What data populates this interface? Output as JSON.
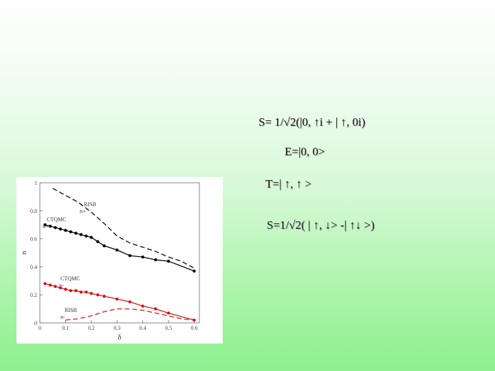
{
  "equations": {
    "s1": "S= 1/√2(|0, ↑i + | ↑, 0i)",
    "e": "E=|0, 0>",
    "t": "T=| ↑, ↑ >",
    "s2": "S=1/√2( | ↑, ↓> -| ↑↓ >)"
  },
  "chart_data": {
    "type": "line",
    "title": "",
    "xlabel": "δ",
    "ylabel": "n",
    "xlim": [
      0,
      0.62
    ],
    "ylim": [
      0,
      1.0
    ],
    "x_ticks": [
      "0",
      "0.1",
      "0.2",
      "0.3",
      "0.4",
      "0.5",
      "0.6"
    ],
    "y_ticks": [
      "0",
      "0.2",
      "0.4",
      "0.6",
      "0.8",
      "1"
    ],
    "annotations": {
      "risb_top": "RISB",
      "n_plus_top": "n+",
      "ctqmc_top": "CTQMC",
      "n_plus_black": "n+",
      "ctqmc_red": "CTQMC",
      "n_minus_red": "n-",
      "risb_bottom": "RISB",
      "n_minus_bottom": "n-"
    },
    "colors": {
      "black": "#000000",
      "red": "#e01010"
    },
    "series": [
      {
        "style": "dashed",
        "color": "black",
        "x": [
          0.05,
          0.1,
          0.15,
          0.2,
          0.25,
          0.3,
          0.35,
          0.4,
          0.45,
          0.5,
          0.55,
          0.6
        ],
        "values": [
          0.96,
          0.91,
          0.86,
          0.79,
          0.71,
          0.62,
          0.57,
          0.54,
          0.51,
          0.47,
          0.44,
          0.39
        ]
      },
      {
        "style": "solid-markers",
        "color": "black",
        "x": [
          0.02,
          0.04,
          0.06,
          0.08,
          0.1,
          0.12,
          0.14,
          0.16,
          0.18,
          0.2,
          0.225,
          0.25,
          0.3,
          0.35,
          0.4,
          0.45,
          0.5,
          0.6
        ],
        "values": [
          0.7,
          0.69,
          0.68,
          0.67,
          0.66,
          0.65,
          0.64,
          0.63,
          0.62,
          0.61,
          0.58,
          0.55,
          0.52,
          0.48,
          0.47,
          0.45,
          0.44,
          0.37
        ]
      },
      {
        "style": "solid-markers",
        "color": "red",
        "x": [
          0.02,
          0.04,
          0.06,
          0.08,
          0.1,
          0.12,
          0.14,
          0.16,
          0.18,
          0.2,
          0.225,
          0.25,
          0.3,
          0.35,
          0.4,
          0.45,
          0.5,
          0.6
        ],
        "values": [
          0.28,
          0.27,
          0.26,
          0.25,
          0.24,
          0.23,
          0.23,
          0.22,
          0.22,
          0.21,
          0.2,
          0.19,
          0.17,
          0.15,
          0.12,
          0.1,
          0.07,
          0.02
        ]
      },
      {
        "style": "dashed",
        "color": "red",
        "x": [
          0.1,
          0.15,
          0.2,
          0.25,
          0.3,
          0.35,
          0.4,
          0.45,
          0.5,
          0.55,
          0.6
        ],
        "values": [
          0.02,
          0.03,
          0.05,
          0.08,
          0.1,
          0.1,
          0.09,
          0.07,
          0.05,
          0.03,
          0.02
        ]
      }
    ]
  }
}
